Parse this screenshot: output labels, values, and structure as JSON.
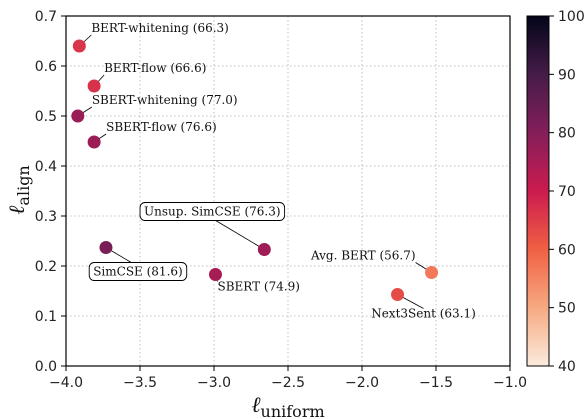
{
  "chart_data": {
    "type": "scatter",
    "xlabel": "ℓ",
    "xlabel_sub": "uniform",
    "ylabel": "ℓ",
    "ylabel_sub": "align",
    "xlim": [
      -4.0,
      -1.0
    ],
    "ylim": [
      0.0,
      0.7
    ],
    "xticks": [
      -4.0,
      -3.5,
      -3.0,
      -2.5,
      -2.0,
      -1.5,
      -1.0
    ],
    "yticks": [
      0.0,
      0.1,
      0.2,
      0.3,
      0.4,
      0.5,
      0.6,
      0.7
    ],
    "xtick_labels": [
      "−4.0",
      "−3.5",
      "−3.0",
      "−2.5",
      "−2.0",
      "−1.5",
      "−1.0"
    ],
    "ytick_labels": [
      "0.0",
      "0.1",
      "0.2",
      "0.3",
      "0.4",
      "0.5",
      "0.6",
      "0.7"
    ],
    "grid": true,
    "colorbar": {
      "min": 40,
      "max": 100,
      "ticks": [
        40,
        50,
        60,
        70,
        80,
        90,
        100
      ],
      "colormap": "rocket_r",
      "position": "right"
    },
    "points": [
      {
        "label": "BERT-whitening (66.3)",
        "x": -3.91,
        "y": 0.64,
        "value": 66.3,
        "boxed": false
      },
      {
        "label": "BERT-flow (66.6)",
        "x": -3.81,
        "y": 0.56,
        "value": 66.6,
        "boxed": false
      },
      {
        "label": "SBERT-whitening (77.0)",
        "x": -3.92,
        "y": 0.5,
        "value": 77.0,
        "boxed": false
      },
      {
        "label": "SBERT-flow (76.6)",
        "x": -3.81,
        "y": 0.448,
        "value": 76.6,
        "boxed": false
      },
      {
        "label": "Unsup. SimCSE (76.3)",
        "x": -2.66,
        "y": 0.233,
        "value": 76.3,
        "boxed": true
      },
      {
        "label": "SimCSE (81.6)",
        "x": -3.73,
        "y": 0.237,
        "value": 81.6,
        "boxed": true
      },
      {
        "label": "SBERT (74.9)",
        "x": -2.99,
        "y": 0.183,
        "value": 74.9,
        "boxed": false
      },
      {
        "label": "Avg. BERT (56.7)",
        "x": -1.53,
        "y": 0.187,
        "value": 56.7,
        "boxed": false
      },
      {
        "label": "Next3Sent (63.1)",
        "x": -1.76,
        "y": 0.143,
        "value": 63.1,
        "boxed": false
      }
    ]
  }
}
